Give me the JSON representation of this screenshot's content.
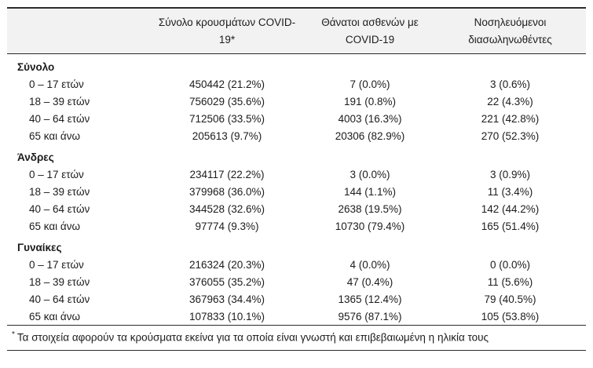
{
  "table": {
    "headers": {
      "cases": "Σύνολο κρουσμάτων COVID-19*",
      "deaths": "Θάνατοι ασθενών με COVID-19",
      "intubated": "Νοσηλευόμενοι διασωληνωθέντες"
    },
    "sections": [
      {
        "label": "Σύνολο",
        "rows": [
          {
            "label": "0 – 17 ετών",
            "cases": "450442 (21.2%)",
            "deaths": "7 (0.0%)",
            "intubated": "3 (0.6%)"
          },
          {
            "label": "18 – 39 ετών",
            "cases": "756029 (35.6%)",
            "deaths": "191 (0.8%)",
            "intubated": "22 (4.3%)"
          },
          {
            "label": "40 – 64 ετών",
            "cases": "712506 (33.5%)",
            "deaths": "4003 (16.3%)",
            "intubated": "221 (42.8%)"
          },
          {
            "label": "65 και άνω",
            "cases": "205613 (9.7%)",
            "deaths": "20306 (82.9%)",
            "intubated": "270 (52.3%)"
          }
        ]
      },
      {
        "label": "Άνδρες",
        "rows": [
          {
            "label": "0 – 17 ετών",
            "cases": "234117 (22.2%)",
            "deaths": "3 (0.0%)",
            "intubated": "3 (0.9%)"
          },
          {
            "label": "18 – 39 ετών",
            "cases": "379968 (36.0%)",
            "deaths": "144 (1.1%)",
            "intubated": "11 (3.4%)"
          },
          {
            "label": "40 – 64 ετών",
            "cases": "344528 (32.6%)",
            "deaths": "2638 (19.5%)",
            "intubated": "142 (44.2%)"
          },
          {
            "label": "65 και άνω",
            "cases": "97774 (9.3%)",
            "deaths": "10730 (79.4%)",
            "intubated": "165 (51.4%)"
          }
        ]
      },
      {
        "label": "Γυναίκες",
        "rows": [
          {
            "label": "0 – 17 ετών",
            "cases": "216324 (20.3%)",
            "deaths": "4 (0.0%)",
            "intubated": "0 (0.0%)"
          },
          {
            "label": "18 – 39 ετών",
            "cases": "376055 (35.2%)",
            "deaths": "47 (0.4%)",
            "intubated": "11 (5.6%)"
          },
          {
            "label": "40 – 64 ετών",
            "cases": "367963 (34.4%)",
            "deaths": "1365 (12.4%)",
            "intubated": "79 (40.5%)"
          },
          {
            "label": "65 και άνω",
            "cases": "107833 (10.1%)",
            "deaths": "9576 (87.1%)",
            "intubated": "105 (53.8%)"
          }
        ]
      }
    ],
    "footnote_marker": "*",
    "footnote": "Τα στοιχεία αφορούν τα κρούσματα εκείνα για τα οποία είναι γνωστή και επιβεβαιωμένη η ηλικία τους"
  }
}
